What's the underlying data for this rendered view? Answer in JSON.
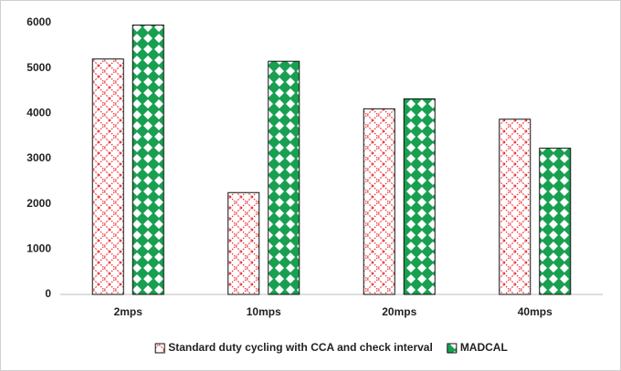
{
  "chart_data": {
    "type": "bar",
    "categories": [
      "2mps",
      "10mps",
      "20mps",
      "40mps"
    ],
    "series": [
      {
        "name": "Standard duty cycling with CCA and check interval",
        "color": "#e8262b",
        "values": [
          5200,
          2250,
          4100,
          3870
        ]
      },
      {
        "name": "MADCAL",
        "color": "#18a050",
        "values": [
          5950,
          5150,
          4320,
          3230
        ]
      }
    ],
    "ylim": [
      0,
      6000
    ],
    "yticks": [
      0,
      1000,
      2000,
      3000,
      4000,
      5000,
      6000
    ],
    "grid": false
  }
}
